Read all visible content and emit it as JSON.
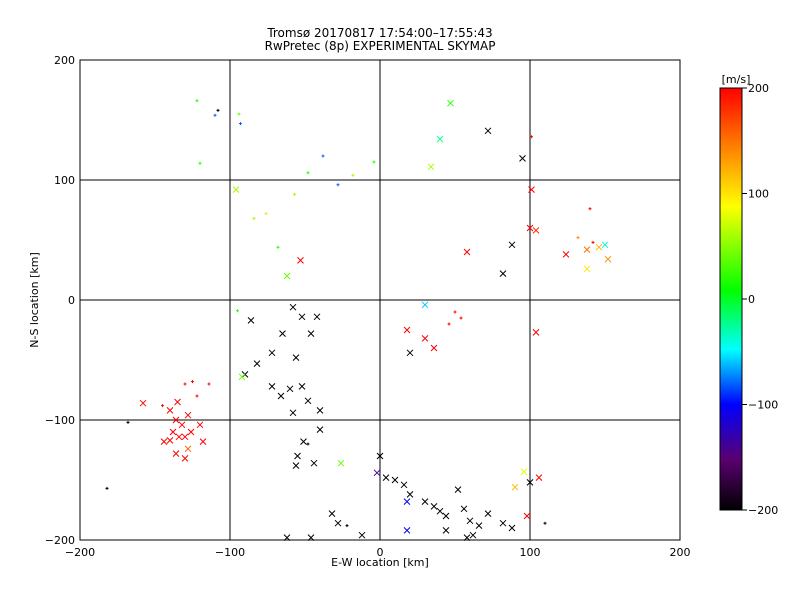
{
  "chart_data": {
    "type": "scatter",
    "title": "Tromsø 20170817 17:54:00–17:55:43",
    "subtitle": "RwPretec (8p) EXPERIMENTAL SKYMAP",
    "xlabel": "E-W location [km]",
    "ylabel": "N-S location [km]",
    "xlim": [
      -200,
      200
    ],
    "ylim": [
      -200,
      200
    ],
    "xticks": [
      "−200",
      "−100",
      "0",
      "100",
      "200"
    ],
    "yticks": [
      "−200",
      "−100",
      "0",
      "100",
      "200"
    ],
    "xtick_values": [
      -200,
      -100,
      0,
      100,
      200
    ],
    "ytick_values": [
      -200,
      -100,
      0,
      100,
      200
    ],
    "grid": true,
    "colorbar": {
      "label": "[m/s]",
      "range": [
        -200,
        200
      ],
      "ticks": [
        "200",
        "100",
        "0",
        "−100",
        "−200"
      ],
      "tick_values": [
        200,
        100,
        0,
        -100,
        -200
      ],
      "colors": [
        "#000000",
        "#5a0070",
        "#0000ff",
        "#00ffff",
        "#00ff00",
        "#ffff00",
        "#ff8000",
        "#ff0000"
      ]
    },
    "marker_types": [
      "x",
      "+"
    ],
    "points": [
      {
        "x": -122,
        "y": 166,
        "v": 20,
        "m": "+"
      },
      {
        "x": -108,
        "y": 158,
        "v": -200,
        "m": "+"
      },
      {
        "x": -110,
        "y": 154,
        "v": -80,
        "m": "+"
      },
      {
        "x": -93,
        "y": 147,
        "v": -80,
        "m": "+"
      },
      {
        "x": -94,
        "y": 155,
        "v": 40,
        "m": "+"
      },
      {
        "x": -120,
        "y": 114,
        "v": 20,
        "m": "+"
      },
      {
        "x": -96,
        "y": 92,
        "v": 60,
        "m": "x"
      },
      {
        "x": 47,
        "y": 164,
        "v": 20,
        "m": "x"
      },
      {
        "x": 72,
        "y": 141,
        "v": -200,
        "m": "x"
      },
      {
        "x": 101,
        "y": 136,
        "v": 200,
        "m": "+"
      },
      {
        "x": 40,
        "y": 134,
        "v": -20,
        "m": "x"
      },
      {
        "x": 95,
        "y": 118,
        "v": -200,
        "m": "x"
      },
      {
        "x": 34,
        "y": 111,
        "v": 60,
        "m": "x"
      },
      {
        "x": 101,
        "y": 92,
        "v": 200,
        "m": "x"
      },
      {
        "x": 140,
        "y": 76,
        "v": 200,
        "m": "+"
      },
      {
        "x": 100,
        "y": 60,
        "v": 200,
        "m": "x"
      },
      {
        "x": 104,
        "y": 58,
        "v": 180,
        "m": "x"
      },
      {
        "x": 132,
        "y": 52,
        "v": 140,
        "m": "+"
      },
      {
        "x": 124,
        "y": 38,
        "v": 200,
        "m": "x"
      },
      {
        "x": 138,
        "y": 42,
        "v": 150,
        "m": "x"
      },
      {
        "x": 146,
        "y": 44,
        "v": 120,
        "m": "x"
      },
      {
        "x": 150,
        "y": 46,
        "v": -40,
        "m": "x"
      },
      {
        "x": 152,
        "y": 34,
        "v": 140,
        "m": "x"
      },
      {
        "x": 138,
        "y": 26,
        "v": 100,
        "m": "x"
      },
      {
        "x": 142,
        "y": 48,
        "v": 200,
        "m": "+"
      },
      {
        "x": 58,
        "y": 40,
        "v": 200,
        "m": "x"
      },
      {
        "x": 88,
        "y": 46,
        "v": -200,
        "m": "x"
      },
      {
        "x": 82,
        "y": 22,
        "v": -200,
        "m": "x"
      },
      {
        "x": 50,
        "y": -10,
        "v": 200,
        "m": "+"
      },
      {
        "x": 54,
        "y": -15,
        "v": 200,
        "m": "+"
      },
      {
        "x": 46,
        "y": -20,
        "v": 200,
        "m": "+"
      },
      {
        "x": 104,
        "y": -27,
        "v": 200,
        "m": "x"
      },
      {
        "x": 30,
        "y": -4,
        "v": -60,
        "m": "x"
      },
      {
        "x": 18,
        "y": -25,
        "v": 200,
        "m": "x"
      },
      {
        "x": 30,
        "y": -32,
        "v": 200,
        "m": "x"
      },
      {
        "x": 36,
        "y": -40,
        "v": 200,
        "m": "x"
      },
      {
        "x": 20,
        "y": -44,
        "v": -200,
        "m": "x"
      },
      {
        "x": -53,
        "y": 33,
        "v": 200,
        "m": "x"
      },
      {
        "x": -62,
        "y": 20,
        "v": 40,
        "m": "x"
      },
      {
        "x": -68,
        "y": 44,
        "v": 20,
        "m": "+"
      },
      {
        "x": -84,
        "y": 68,
        "v": 60,
        "m": "+"
      },
      {
        "x": -57,
        "y": 88,
        "v": 60,
        "m": "+"
      },
      {
        "x": -76,
        "y": 72,
        "v": 100,
        "m": "+"
      },
      {
        "x": -48,
        "y": 106,
        "v": 20,
        "m": "+"
      },
      {
        "x": -38,
        "y": 120,
        "v": -80,
        "m": "+"
      },
      {
        "x": -95,
        "y": -9,
        "v": 20,
        "m": "+"
      },
      {
        "x": -86,
        "y": -17,
        "v": -200,
        "m": "x"
      },
      {
        "x": -58,
        "y": -6,
        "v": -200,
        "m": "x"
      },
      {
        "x": -52,
        "y": -14,
        "v": -200,
        "m": "x"
      },
      {
        "x": -42,
        "y": -14,
        "v": -200,
        "m": "x"
      },
      {
        "x": -46,
        "y": -28,
        "v": -200,
        "m": "x"
      },
      {
        "x": -65,
        "y": -28,
        "v": -200,
        "m": "x"
      },
      {
        "x": -72,
        "y": -44,
        "v": -200,
        "m": "x"
      },
      {
        "x": -56,
        "y": -48,
        "v": -200,
        "m": "x"
      },
      {
        "x": -82,
        "y": -53,
        "v": -200,
        "m": "x"
      },
      {
        "x": -90,
        "y": -62,
        "v": -200,
        "m": "x"
      },
      {
        "x": -92,
        "y": -64,
        "v": 40,
        "m": "x"
      },
      {
        "x": -72,
        "y": -72,
        "v": -200,
        "m": "x"
      },
      {
        "x": -60,
        "y": -74,
        "v": -200,
        "m": "x"
      },
      {
        "x": -52,
        "y": -72,
        "v": -200,
        "m": "x"
      },
      {
        "x": -66,
        "y": -80,
        "v": -200,
        "m": "x"
      },
      {
        "x": -48,
        "y": -84,
        "v": -200,
        "m": "x"
      },
      {
        "x": -58,
        "y": -94,
        "v": -200,
        "m": "x"
      },
      {
        "x": -40,
        "y": -92,
        "v": -200,
        "m": "x"
      },
      {
        "x": -40,
        "y": -108,
        "v": -200,
        "m": "x"
      },
      {
        "x": -51,
        "y": -118,
        "v": -200,
        "m": "x"
      },
      {
        "x": -55,
        "y": -130,
        "v": -200,
        "m": "x"
      },
      {
        "x": -44,
        "y": -136,
        "v": -200,
        "m": "x"
      },
      {
        "x": -56,
        "y": -138,
        "v": -200,
        "m": "x"
      },
      {
        "x": -48,
        "y": -120,
        "v": -200,
        "m": "+"
      },
      {
        "x": -26,
        "y": -136,
        "v": 40,
        "m": "x"
      },
      {
        "x": -158,
        "y": -86,
        "v": 200,
        "m": "x"
      },
      {
        "x": -168,
        "y": -102,
        "v": -200,
        "m": "+"
      },
      {
        "x": -140,
        "y": -92,
        "v": 200,
        "m": "x"
      },
      {
        "x": -135,
        "y": -85,
        "v": 200,
        "m": "x"
      },
      {
        "x": -130,
        "y": -70,
        "v": 200,
        "m": "+"
      },
      {
        "x": -125,
        "y": -68,
        "v": 200,
        "m": "+"
      },
      {
        "x": -136,
        "y": -100,
        "v": 200,
        "m": "x"
      },
      {
        "x": -132,
        "y": -104,
        "v": 200,
        "m": "x"
      },
      {
        "x": -128,
        "y": -96,
        "v": 200,
        "m": "x"
      },
      {
        "x": -138,
        "y": -110,
        "v": 200,
        "m": "x"
      },
      {
        "x": -140,
        "y": -117,
        "v": 200,
        "m": "x"
      },
      {
        "x": -134,
        "y": -114,
        "v": 200,
        "m": "x"
      },
      {
        "x": -130,
        "y": -114,
        "v": 200,
        "m": "x"
      },
      {
        "x": -144,
        "y": -118,
        "v": 200,
        "m": "x"
      },
      {
        "x": -126,
        "y": -110,
        "v": 200,
        "m": "x"
      },
      {
        "x": -120,
        "y": -104,
        "v": 200,
        "m": "x"
      },
      {
        "x": -118,
        "y": -118,
        "v": 200,
        "m": "x"
      },
      {
        "x": -128,
        "y": -124,
        "v": 160,
        "m": "x"
      },
      {
        "x": -130,
        "y": -132,
        "v": 200,
        "m": "x"
      },
      {
        "x": -136,
        "y": -128,
        "v": 200,
        "m": "x"
      },
      {
        "x": -145,
        "y": -88,
        "v": 200,
        "m": "+"
      },
      {
        "x": -122,
        "y": -80,
        "v": 200,
        "m": "+"
      },
      {
        "x": -114,
        "y": -70,
        "v": 200,
        "m": "+"
      },
      {
        "x": -182,
        "y": -157,
        "v": -200,
        "m": "+"
      },
      {
        "x": 0,
        "y": -130,
        "v": -200,
        "m": "x"
      },
      {
        "x": -2,
        "y": -144,
        "v": -140,
        "m": "x"
      },
      {
        "x": 4,
        "y": -148,
        "v": -200,
        "m": "x"
      },
      {
        "x": 10,
        "y": -150,
        "v": -200,
        "m": "x"
      },
      {
        "x": 16,
        "y": -154,
        "v": -200,
        "m": "x"
      },
      {
        "x": 20,
        "y": -162,
        "v": -200,
        "m": "x"
      },
      {
        "x": 30,
        "y": -168,
        "v": -200,
        "m": "x"
      },
      {
        "x": 18,
        "y": -168,
        "v": -100,
        "m": "x"
      },
      {
        "x": 36,
        "y": -172,
        "v": -200,
        "m": "x"
      },
      {
        "x": 40,
        "y": -176,
        "v": -200,
        "m": "x"
      },
      {
        "x": 44,
        "y": -180,
        "v": -200,
        "m": "x"
      },
      {
        "x": 52,
        "y": -158,
        "v": -200,
        "m": "x"
      },
      {
        "x": 56,
        "y": -174,
        "v": -200,
        "m": "x"
      },
      {
        "x": 60,
        "y": -184,
        "v": -200,
        "m": "x"
      },
      {
        "x": 66,
        "y": -188,
        "v": -200,
        "m": "x"
      },
      {
        "x": 62,
        "y": -196,
        "v": -200,
        "m": "x"
      },
      {
        "x": 58,
        "y": -198,
        "v": -200,
        "m": "x"
      },
      {
        "x": 72,
        "y": -178,
        "v": -200,
        "m": "x"
      },
      {
        "x": 82,
        "y": -186,
        "v": -200,
        "m": "x"
      },
      {
        "x": 88,
        "y": -190,
        "v": -200,
        "m": "x"
      },
      {
        "x": 90,
        "y": -156,
        "v": 120,
        "m": "x"
      },
      {
        "x": 96,
        "y": -143,
        "v": 80,
        "m": "x"
      },
      {
        "x": 98,
        "y": -180,
        "v": 200,
        "m": "x"
      },
      {
        "x": 100,
        "y": -152,
        "v": -200,
        "m": "x"
      },
      {
        "x": 106,
        "y": -148,
        "v": 200,
        "m": "x"
      },
      {
        "x": 110,
        "y": -186,
        "v": -200,
        "m": "+"
      },
      {
        "x": 18,
        "y": -192,
        "v": -100,
        "m": "x"
      },
      {
        "x": 44,
        "y": -192,
        "v": -200,
        "m": "x"
      },
      {
        "x": -32,
        "y": -178,
        "v": -200,
        "m": "x"
      },
      {
        "x": -28,
        "y": -186,
        "v": -200,
        "m": "x"
      },
      {
        "x": -46,
        "y": -198,
        "v": -200,
        "m": "x"
      },
      {
        "x": -62,
        "y": -198,
        "v": -200,
        "m": "x"
      },
      {
        "x": -12,
        "y": -196,
        "v": -200,
        "m": "x"
      },
      {
        "x": -22,
        "y": -188,
        "v": -200,
        "m": "+"
      },
      {
        "x": -4,
        "y": 115,
        "v": 20,
        "m": "+"
      },
      {
        "x": -18,
        "y": 104,
        "v": 60,
        "m": "+"
      },
      {
        "x": -28,
        "y": 96,
        "v": -80,
        "m": "+"
      }
    ]
  }
}
